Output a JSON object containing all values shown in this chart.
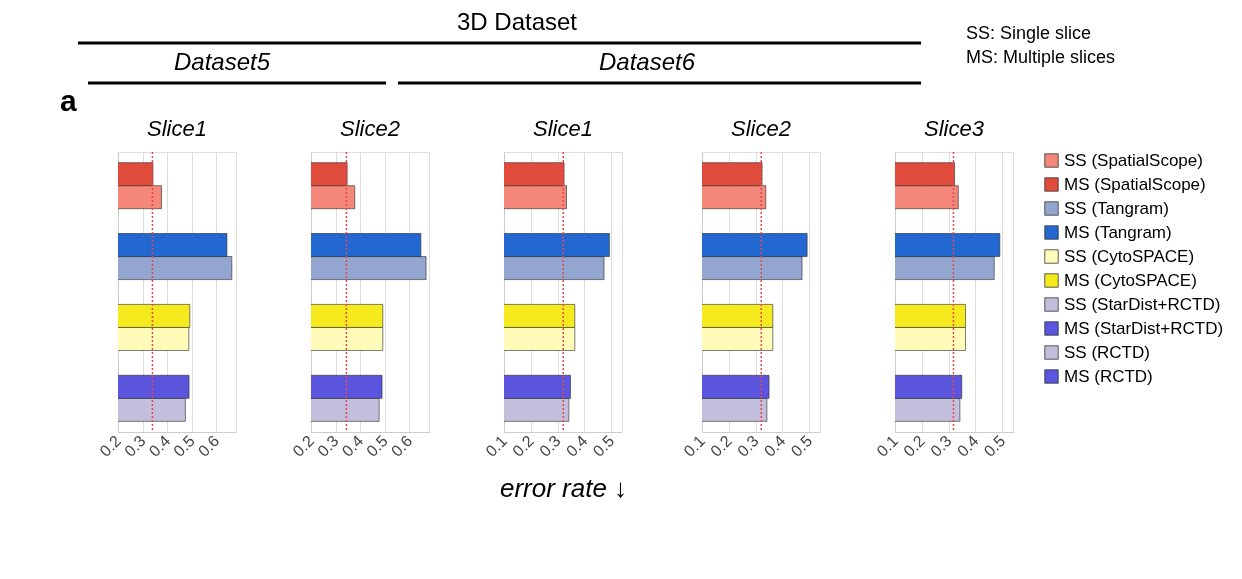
{
  "chart_data": [
    {
      "type": "bar",
      "title": "Slice1",
      "orientation": "horizontal",
      "categories": [
        null,
        null,
        null,
        null
      ],
      "xlim": [
        0.2,
        0.68
      ],
      "xticks": [
        0.2,
        0.3,
        0.4,
        0.5,
        0.6
      ],
      "grid": "x",
      "tick_labels": "x",
      "annotations": [
        "a",
        "3D Dataset",
        "Dataset5"
      ],
      "ref_lines": [
        {
          "axis": "x",
          "value": 0.34,
          "color": "#e8474f",
          "line_style": "dotted"
        }
      ],
      "series": [
        {
          "color": "#f4877a",
          "values": [
            0.377,
            null,
            null,
            null
          ]
        },
        {
          "color": "#e04b3c",
          "values": [
            0.342,
            null,
            null,
            null
          ]
        },
        {
          "color": "#93a6cf",
          "values": [
            null,
            0.663,
            null,
            null
          ]
        },
        {
          "color": "#2368d0",
          "values": [
            null,
            0.643,
            null,
            null
          ]
        },
        {
          "color": "#fffbb8",
          "values": [
            null,
            null,
            0.488,
            null
          ]
        },
        {
          "color": "#f5ea1e",
          "values": [
            null,
            null,
            0.492,
            null
          ]
        },
        {
          "color": "#c2bfdd",
          "values": [
            null,
            null,
            null,
            0.474
          ]
        },
        {
          "color": "#5a55dc",
          "values": [
            null,
            null,
            null,
            0.489
          ]
        }
      ]
    },
    {
      "type": "bar",
      "title": "Slice2",
      "orientation": "horizontal",
      "categories": [
        null,
        null,
        null,
        null
      ],
      "xlim": [
        0.2,
        0.68
      ],
      "xticks": [
        0.2,
        0.3,
        0.4,
        0.5,
        0.6
      ],
      "grid": "x",
      "tick_labels": "x",
      "ref_lines": [
        {
          "axis": "x",
          "value": 0.344,
          "color": "#e8474f",
          "line_style": "dotted"
        }
      ],
      "series": [
        {
          "color": "#f4877a",
          "values": [
            0.378,
            null,
            null,
            null
          ]
        },
        {
          "color": "#e04b3c",
          "values": [
            0.347,
            null,
            null,
            null
          ]
        },
        {
          "color": "#93a6cf",
          "values": [
            null,
            0.668,
            null,
            null
          ]
        },
        {
          "color": "#2368d0",
          "values": [
            null,
            0.647,
            null,
            null
          ]
        },
        {
          "color": "#fffbb8",
          "values": [
            null,
            null,
            0.492,
            null
          ]
        },
        {
          "color": "#f5ea1e",
          "values": [
            null,
            null,
            0.492,
            null
          ]
        },
        {
          "color": "#c2bfdd",
          "values": [
            null,
            null,
            null,
            0.477
          ]
        },
        {
          "color": "#5a55dc",
          "values": [
            null,
            null,
            null,
            0.489
          ]
        }
      ]
    },
    {
      "type": "bar",
      "title": "Slice1",
      "orientation": "horizontal",
      "categories": [
        null,
        null,
        null,
        null
      ],
      "xlim": [
        0.1,
        0.54
      ],
      "xticks": [
        0.1,
        0.2,
        0.3,
        0.4,
        0.5
      ],
      "grid": "x",
      "tick_labels": "x",
      "xlabel": "error rate ↓",
      "annotations": [
        "Dataset6"
      ],
      "ref_lines": [
        {
          "axis": "x",
          "value": 0.321,
          "color": "#e8474f",
          "line_style": "dotted"
        }
      ],
      "series": [
        {
          "color": "#f4877a",
          "values": [
            0.333,
            null,
            null,
            null
          ]
        },
        {
          "color": "#e04b3c",
          "values": [
            0.324,
            null,
            null,
            null
          ]
        },
        {
          "color": "#93a6cf",
          "values": [
            null,
            0.473,
            null,
            null
          ]
        },
        {
          "color": "#2368d0",
          "values": [
            null,
            0.493,
            null,
            null
          ]
        },
        {
          "color": "#fffbb8",
          "values": [
            null,
            null,
            0.364,
            null
          ]
        },
        {
          "color": "#f5ea1e",
          "values": [
            null,
            null,
            0.364,
            null
          ]
        },
        {
          "color": "#c2bfdd",
          "values": [
            null,
            null,
            null,
            0.342
          ]
        },
        {
          "color": "#5a55dc",
          "values": [
            null,
            null,
            null,
            0.348
          ]
        }
      ]
    },
    {
      "type": "bar",
      "title": "Slice2",
      "orientation": "horizontal",
      "categories": [
        null,
        null,
        null,
        null
      ],
      "xlim": [
        0.1,
        0.54
      ],
      "xticks": [
        0.1,
        0.2,
        0.3,
        0.4,
        0.5
      ],
      "grid": "x",
      "tick_labels": "x",
      "ref_lines": [
        {
          "axis": "x",
          "value": 0.321,
          "color": "#e8474f",
          "line_style": "dotted"
        }
      ],
      "series": [
        {
          "color": "#f4877a",
          "values": [
            0.338,
            null,
            null,
            null
          ]
        },
        {
          "color": "#e04b3c",
          "values": [
            0.324,
            null,
            null,
            null
          ]
        },
        {
          "color": "#93a6cf",
          "values": [
            null,
            0.473,
            null,
            null
          ]
        },
        {
          "color": "#2368d0",
          "values": [
            null,
            0.492,
            null,
            null
          ]
        },
        {
          "color": "#fffbb8",
          "values": [
            null,
            null,
            0.364,
            null
          ]
        },
        {
          "color": "#f5ea1e",
          "values": [
            null,
            null,
            0.364,
            null
          ]
        },
        {
          "color": "#c2bfdd",
          "values": [
            null,
            null,
            null,
            0.342
          ]
        },
        {
          "color": "#5a55dc",
          "values": [
            null,
            null,
            null,
            0.35
          ]
        }
      ]
    },
    {
      "type": "bar",
      "title": "Slice3",
      "orientation": "horizontal",
      "categories": [
        null,
        null,
        null,
        null
      ],
      "xlim": [
        0.1,
        0.54
      ],
      "xticks": [
        0.1,
        0.2,
        0.3,
        0.4,
        0.5
      ],
      "grid": "x",
      "tick_labels": "x",
      "legend": "right",
      "annotations": [
        "SS: Single slice",
        "MS: Multiple slices"
      ],
      "ref_lines": [
        {
          "axis": "x",
          "value": 0.318,
          "color": "#e8474f",
          "line_style": "dotted"
        }
      ],
      "series": [
        {
          "name": "SS (SpatialScope)",
          "color": "#f4877a",
          "values": [
            0.336,
            null,
            null,
            null
          ]
        },
        {
          "name": "MS (SpatialScope)",
          "color": "#e04b3c",
          "values": [
            0.322,
            null,
            null,
            null
          ]
        },
        {
          "name": "SS (Tangram)",
          "color": "#93a6cf",
          "values": [
            null,
            0.47,
            null,
            null
          ]
        },
        {
          "name": "MS (Tangram)",
          "color": "#2368d0",
          "values": [
            null,
            0.491,
            null,
            null
          ]
        },
        {
          "name": "SS (CytoSPACE)",
          "color": "#fffbb8",
          "values": [
            null,
            null,
            0.363,
            null
          ]
        },
        {
          "name": "MS (CytoSPACE)",
          "color": "#f5ea1e",
          "values": [
            null,
            null,
            0.363,
            null
          ]
        },
        {
          "name": "SS (StarDist+RCTD)",
          "color": "#c2bfdd",
          "values": [
            null,
            null,
            null,
            0.342
          ]
        },
        {
          "name": "MS (StarDist+RCTD)",
          "color": "#5a55dc",
          "values": [
            null,
            null,
            null,
            0.349
          ]
        },
        {
          "name": "SS (RCTD)",
          "color": "#c2bfdd",
          "values": [
            null,
            null,
            null,
            null
          ]
        },
        {
          "name": "MS (RCTD)",
          "color": "#5a55dc",
          "values": [
            null,
            null,
            null,
            null
          ]
        }
      ]
    }
  ]
}
